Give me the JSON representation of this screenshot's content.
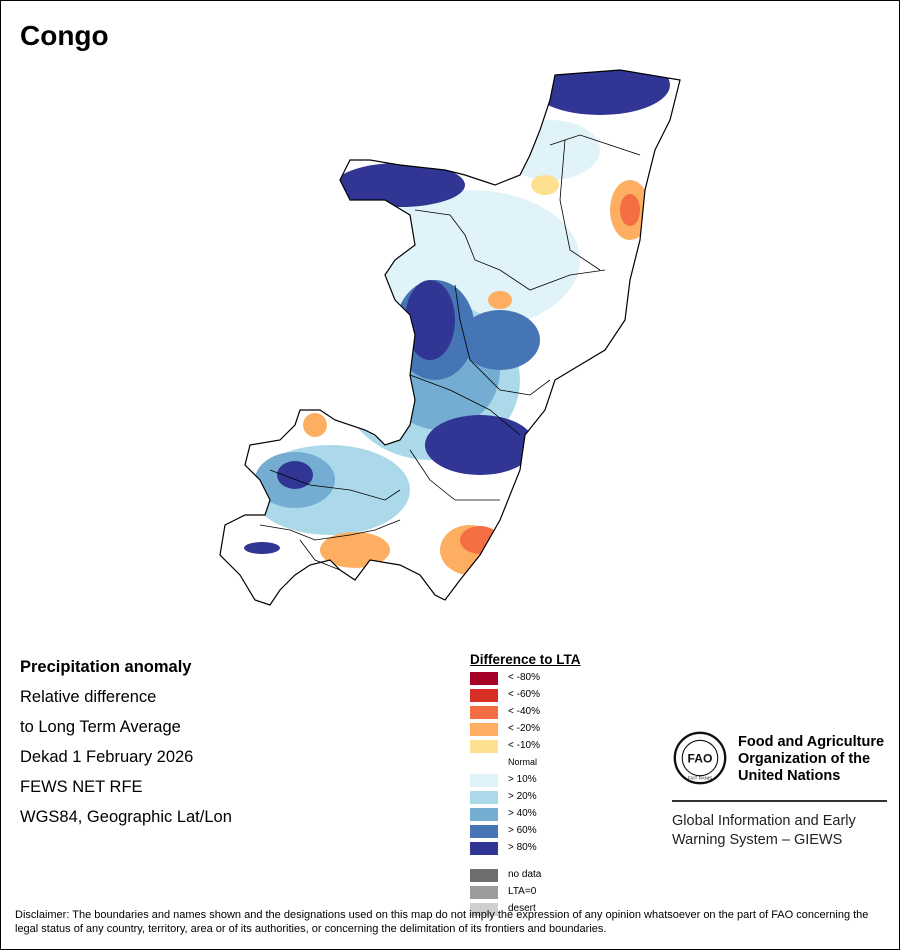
{
  "title": "Congo",
  "map": {
    "country": "Congo",
    "anomaly_zones": [
      {
        "area": "far north",
        "class": "> 80%"
      },
      {
        "area": "northwest",
        "class": "> 80%"
      },
      {
        "area": "north-central",
        "class": "Normal"
      },
      {
        "area": "northeast border",
        "class": "< -20%"
      },
      {
        "area": "west-central",
        "class": "> 80%"
      },
      {
        "area": "central",
        "class": "> 60%"
      },
      {
        "area": "east-central",
        "class": "> 80%"
      },
      {
        "area": "southwest",
        "class": "> 40%"
      },
      {
        "area": "south-central",
        "class": "< -20%"
      },
      {
        "area": "southeast",
        "class": "< -40%"
      }
    ]
  },
  "info": {
    "heading": "Precipitation anomaly",
    "line1": "Relative difference",
    "line2": "to Long Term Average",
    "line3": "Dekad 1 February 2026",
    "line4": "FEWS NET RFE",
    "line5": "WGS84, Geographic Lat/Lon"
  },
  "legend": {
    "title": "Difference to LTA",
    "items": [
      {
        "label": "< -80%",
        "color": "#a50026"
      },
      {
        "label": "< -60%",
        "color": "#d73027"
      },
      {
        "label": "< -40%",
        "color": "#f46d43"
      },
      {
        "label": "< -20%",
        "color": "#fdae61"
      },
      {
        "label": "< -10%",
        "color": "#fee090"
      },
      {
        "label": "Normal",
        "color": "#ffffff"
      },
      {
        "label": "> 10%",
        "color": "#e0f3f8"
      },
      {
        "label": "> 20%",
        "color": "#abd9e9"
      },
      {
        "label": "> 40%",
        "color": "#74add1"
      },
      {
        "label": "> 60%",
        "color": "#4575b4"
      },
      {
        "label": "> 80%",
        "color": "#313695"
      }
    ],
    "extra": [
      {
        "label": "no data",
        "color": "#6e6e6e"
      },
      {
        "label": "LTA=0",
        "color": "#9c9c9c"
      },
      {
        "label": "desert",
        "color": "#cfcfcf"
      }
    ]
  },
  "fao": {
    "name1": "Food and Agriculture",
    "name2": "Organization of the",
    "name3": "United Nations",
    "logo_text": "FAO",
    "motto": "FIAT PANIS",
    "giews1": "Global Information and Early",
    "giews2": "Warning System – GIEWS"
  },
  "disclaimer": "Disclaimer: The boundaries and names shown and the designations used on this map do not imply the expression of any opinion whatsoever on the part of FAO concerning the legal status of any country, territory, area or of its authorities, or concerning the delimitation of its frontiers and boundaries."
}
